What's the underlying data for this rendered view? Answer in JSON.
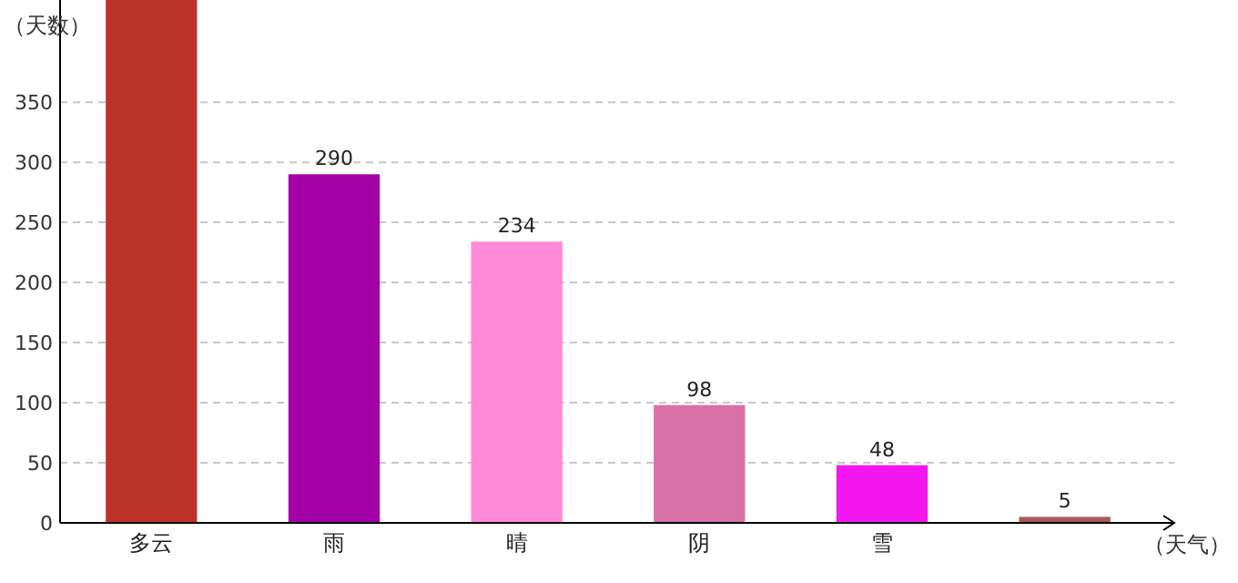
{
  "chart_data": {
    "type": "bar",
    "xlabel": "（天气）",
    "ylabel": "（天数）",
    "categories": [
      "多云",
      "雨",
      "晴",
      "阴",
      "雪",
      null
    ],
    "values": [
      435,
      290,
      234,
      98,
      48,
      5
    ],
    "colors": [
      "#bb3328",
      "#a300a8",
      "#ff8ad8",
      "#da70a8",
      "#f416f0",
      "#a85a5a"
    ],
    "value_labels": [
      null,
      "290",
      "234",
      "98",
      "48",
      "5"
    ],
    "ylim": [
      0,
      435
    ],
    "yticks": [
      0,
      50,
      100,
      150,
      200,
      250,
      300,
      350
    ],
    "grid": "y"
  }
}
